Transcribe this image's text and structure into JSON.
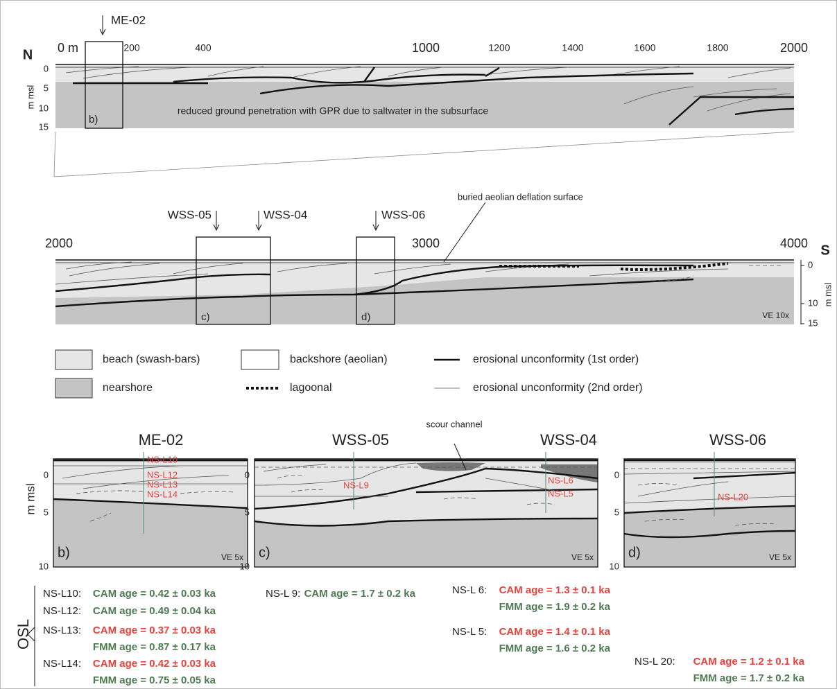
{
  "top_profile": {
    "core": "ME-02",
    "direction": "N",
    "distance_ticks": [
      "0 m",
      "200",
      "400",
      "1000",
      "1200",
      "1400",
      "1600",
      "1800",
      "2000"
    ],
    "depth_axis_title": "m msl",
    "depth_ticks": [
      "0",
      "5",
      "10",
      "15"
    ],
    "window_label": "b)",
    "note": "reduced ground penetration with GPR due to saltwater in the subsurface"
  },
  "middle_profile": {
    "direction": "S",
    "distance_ticks": [
      "2000",
      "3000",
      "4000"
    ],
    "cores": [
      "WSS-05",
      "WSS-04",
      "WSS-06"
    ],
    "annotation": "buried aeolian deflation surface",
    "window_labels": [
      "c)",
      "d)"
    ],
    "depth_axis_title": "m msl",
    "depth_ticks": [
      "0",
      "10",
      "15"
    ],
    "vertical_exaggeration": "VE 10x"
  },
  "legend": [
    "beach (swash-bars)",
    "backshore (aeolian)",
    "erosional unconformity (1st order)",
    "nearshore",
    "lagoonal",
    "erosional unconformity (2nd order)"
  ],
  "panels": {
    "depth_axis_title": "m msl",
    "items": [
      {
        "cores": [
          "ME-02"
        ],
        "label": "b)",
        "vertical_exaggeration": "VE 5x",
        "depth_ticks": [
          "0",
          "5",
          "10"
        ],
        "samples": [
          "NS-L10",
          "NS-L12",
          "NS-L13",
          "NS-L14"
        ]
      },
      {
        "cores": [
          "WSS-05",
          "WSS-04"
        ],
        "label": "c)",
        "vertical_exaggeration": "VE 5x",
        "depth_ticks": [
          "0",
          "5",
          "10"
        ],
        "samples": [
          "NS-L9",
          "NS-L6",
          "NS-L5"
        ],
        "annotation": "scour channel"
      },
      {
        "cores": [
          "WSS-06"
        ],
        "label": "d)",
        "vertical_exaggeration": "VE 5x",
        "depth_ticks": [
          "0",
          "5",
          "10"
        ],
        "samples": [
          "NS-L20"
        ]
      }
    ]
  },
  "osl": {
    "label": "OSL",
    "entries": [
      {
        "sample": "NS-L10:",
        "ages": [
          {
            "text": "CAM age = 0.42 ± 0.03 ka",
            "color": "#4f7a52"
          }
        ]
      },
      {
        "sample": "NS-L12:",
        "ages": [
          {
            "text": "CAM age = 0.49 ± 0.04 ka",
            "color": "#4f7a52"
          }
        ]
      },
      {
        "sample": "NS-L13:",
        "ages": [
          {
            "text": "CAM age = 0.37 ± 0.03 ka",
            "color": "#e8413c"
          },
          {
            "text": "FMM age = 0.87 ± 0.17 ka",
            "color": "#4f7a52"
          }
        ]
      },
      {
        "sample": "NS-L14:",
        "ages": [
          {
            "text": "CAM age = 0.42 ± 0.03 ka",
            "color": "#e8413c"
          },
          {
            "text": "FMM age = 0.75 ± 0.05 ka",
            "color": "#4f7a52"
          }
        ]
      },
      {
        "sample": "NS-L 9:",
        "ages": [
          {
            "text": "CAM age = 1.7 ± 0.2 ka",
            "color": "#4f7a52"
          }
        ]
      },
      {
        "sample": "NS-L 6:",
        "ages": [
          {
            "text": "CAM age = 1.3 ± 0.1 ka",
            "color": "#e8413c"
          },
          {
            "text": "FMM age = 1.9 ± 0.2 ka",
            "color": "#4f7a52"
          }
        ]
      },
      {
        "sample": "NS-L 5:",
        "ages": [
          {
            "text": "CAM age = 1.4 ± 0.1 ka",
            "color": "#e8413c"
          },
          {
            "text": "FMM age = 1.6 ± 0.2 ka",
            "color": "#4f7a52"
          }
        ]
      },
      {
        "sample": "NS-L 20:",
        "ages": [
          {
            "text": "CAM age = 1.2 ± 0.1 ka",
            "color": "#e8413c"
          },
          {
            "text": "FMM age = 1.7 ± 0.2 ka",
            "color": "#4f7a52"
          }
        ]
      }
    ]
  }
}
